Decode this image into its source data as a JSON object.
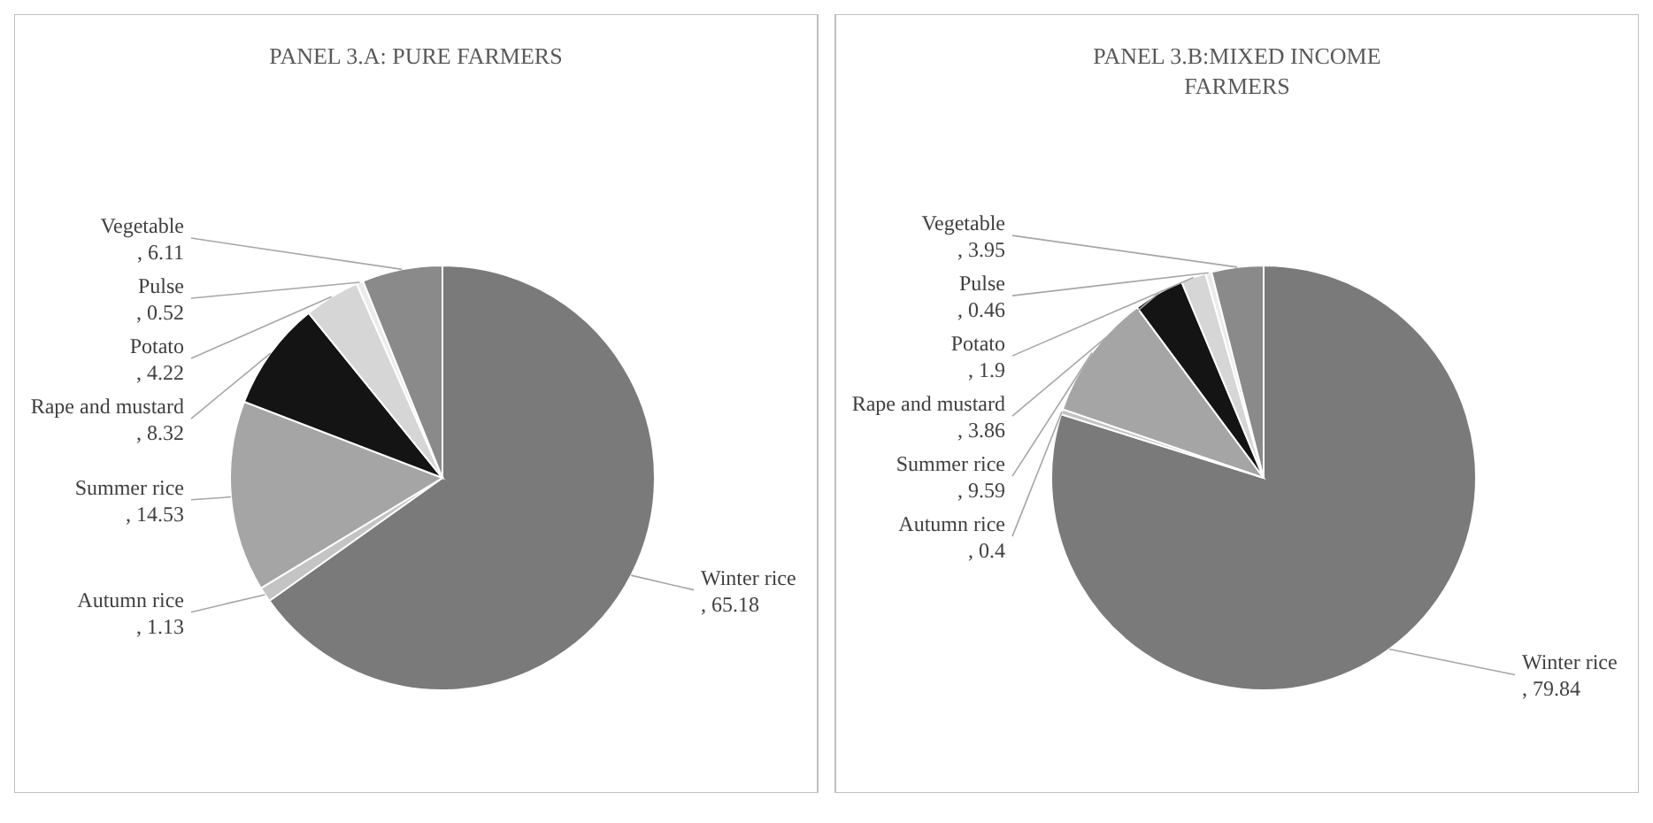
{
  "chart_data": [
    {
      "type": "pie",
      "title": "PANEL 3.A: PURE FARMERS",
      "categories": [
        "Winter rice",
        "Autumn rice",
        "Summer rice",
        "Rape and mustard",
        "Potato",
        "Pulse",
        "Vegetable"
      ],
      "values": [
        65.18,
        1.13,
        14.53,
        8.32,
        4.22,
        0.52,
        6.11
      ],
      "value_labels": [
        ", 65.18",
        ", 1.13",
        ", 14.53",
        ", 8.32",
        ", 4.22",
        ", 0.52",
        ", 6.11"
      ],
      "colors": [
        "#7a7a7a",
        "#c4c4c4",
        "#a5a5a5",
        "#141414",
        "#d6d6d6",
        "#ebebeb",
        "#8a8a8a"
      ]
    },
    {
      "type": "pie",
      "title": "PANEL 3.B:MIXED INCOME FARMERS",
      "categories": [
        "Winter rice",
        "Autumn rice",
        "Summer rice",
        "Rape and mustard",
        "Potato",
        "Pulse",
        "Vegetable"
      ],
      "values": [
        79.84,
        0.4,
        9.59,
        3.86,
        1.9,
        0.46,
        3.95
      ],
      "value_labels": [
        ", 79.84",
        ", 0.4",
        ", 9.59",
        ", 3.86",
        ", 1.9",
        ", 0.46",
        ", 3.95"
      ],
      "colors": [
        "#7a7a7a",
        "#c4c4c4",
        "#a5a5a5",
        "#141414",
        "#d6d6d6",
        "#ebebeb",
        "#8a8a8a"
      ]
    }
  ]
}
